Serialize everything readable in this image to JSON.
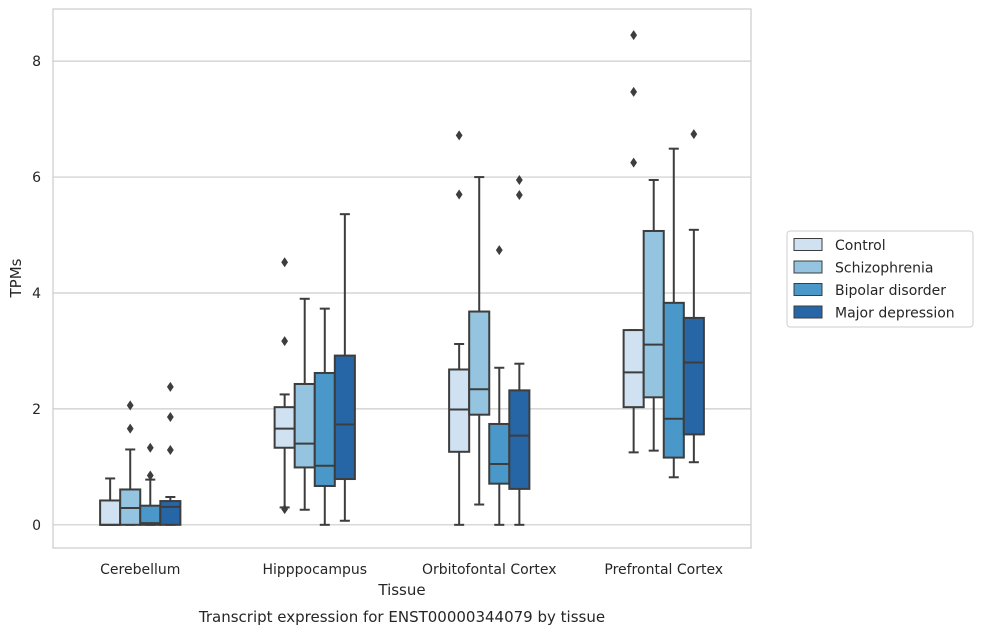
{
  "caption": "Transcript expression for ENST00000344079 by tissue",
  "chart_data": {
    "type": "box",
    "xlabel": "Tissue",
    "ylabel": "TPMs",
    "ylim": [
      -0.4,
      8.9
    ],
    "yticks": [
      0,
      2,
      4,
      6,
      8
    ],
    "grid": "horizontal",
    "legend_position": "right",
    "categories": [
      "Cerebellum",
      "Hipppocampus",
      "Orbitofontal Cortex",
      "Prefrontal Cortex"
    ],
    "series": [
      {
        "name": "Control",
        "color": "#d0e1f2",
        "boxes": [
          {
            "whislo": 0.0,
            "q1": 0.0,
            "med": 0.0,
            "q3": 0.42,
            "whishi": 0.8,
            "fliers": []
          },
          {
            "whislo": 0.3,
            "q1": 1.33,
            "med": 1.66,
            "q3": 2.03,
            "whishi": 2.25,
            "fliers": [
              0.27,
              3.17,
              4.53
            ]
          },
          {
            "whislo": 0.0,
            "q1": 1.26,
            "med": 1.99,
            "q3": 2.68,
            "whishi": 3.12,
            "fliers": [
              5.7,
              6.72
            ]
          },
          {
            "whislo": 1.25,
            "q1": 2.03,
            "med": 2.63,
            "q3": 3.36,
            "whishi": 3.36,
            "fliers": [
              6.25,
              7.47,
              8.45
            ]
          }
        ]
      },
      {
        "name": "Schizophrenia",
        "color": "#94c4df",
        "boxes": [
          {
            "whislo": 0.0,
            "q1": 0.0,
            "med": 0.29,
            "q3": 0.61,
            "whishi": 1.3,
            "fliers": [
              1.66,
              2.06
            ]
          },
          {
            "whislo": 0.26,
            "q1": 0.99,
            "med": 1.4,
            "q3": 2.43,
            "whishi": 3.9,
            "fliers": []
          },
          {
            "whislo": 0.35,
            "q1": 1.9,
            "med": 2.34,
            "q3": 3.68,
            "whishi": 6.0,
            "fliers": []
          },
          {
            "whislo": 1.28,
            "q1": 2.2,
            "med": 3.11,
            "q3": 5.07,
            "whishi": 5.95,
            "fliers": []
          }
        ]
      },
      {
        "name": "Bipolar disorder",
        "color": "#4a98c9",
        "boxes": [
          {
            "whislo": 0.0,
            "q1": 0.0,
            "med": 0.03,
            "q3": 0.33,
            "whishi": 0.78,
            "fliers": [
              0.85,
              1.33
            ]
          },
          {
            "whislo": 0.0,
            "q1": 0.67,
            "med": 1.02,
            "q3": 2.62,
            "whishi": 3.73,
            "fliers": []
          },
          {
            "whislo": 0.0,
            "q1": 0.71,
            "med": 1.05,
            "q3": 1.74,
            "whishi": 2.71,
            "fliers": [
              4.74
            ]
          },
          {
            "whislo": 0.82,
            "q1": 1.16,
            "med": 1.83,
            "q3": 3.83,
            "whishi": 6.49,
            "fliers": []
          }
        ]
      },
      {
        "name": "Major depression",
        "color": "#2666a6",
        "boxes": [
          {
            "whislo": 0.0,
            "q1": 0.0,
            "med": 0.31,
            "q3": 0.41,
            "whishi": 0.48,
            "fliers": [
              1.29,
              1.86,
              2.38
            ]
          },
          {
            "whislo": 0.07,
            "q1": 0.79,
            "med": 1.73,
            "q3": 2.92,
            "whishi": 5.36,
            "fliers": []
          },
          {
            "whislo": 0.0,
            "q1": 0.62,
            "med": 1.54,
            "q3": 2.32,
            "whishi": 2.78,
            "fliers": [
              5.69,
              5.95
            ]
          },
          {
            "whislo": 1.08,
            "q1": 1.56,
            "med": 2.8,
            "q3": 3.57,
            "whishi": 5.09,
            "fliers": [
              6.74
            ]
          }
        ]
      }
    ]
  }
}
